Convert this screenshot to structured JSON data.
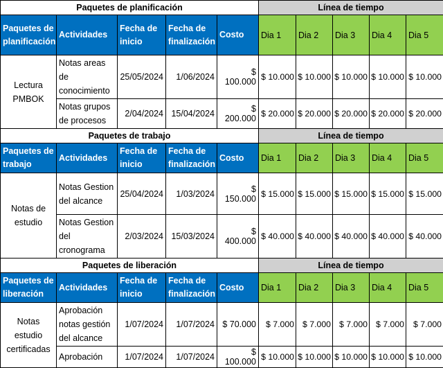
{
  "sections": [
    {
      "title": "Paquetes de planificación",
      "timeline_title": "Línea de tiempo",
      "headers": [
        "Paquetes de planificación",
        "Actividades",
        "Fecha de inicio",
        "Fecha de finalización",
        "Costo"
      ],
      "days": [
        "Dia 1",
        "Dia 2",
        "Dia 3",
        "Dia 4",
        "Dia 5"
      ],
      "package": "Lectura PMBOK",
      "rows": [
        {
          "activity": "Notas areas de conocimiento",
          "start": "25/05/2024",
          "end": "1/06/2024",
          "cost": "$ 100.000",
          "days": [
            "$ 10.000",
            "$ 10.000",
            "$ 10.000",
            "$ 10.000",
            "$ 10.000"
          ]
        },
        {
          "activity": "Notas grupos de procesos",
          "start": "2/04/2024",
          "end": "15/04/2024",
          "cost": "$ 200.000",
          "days": [
            "$ 20.000",
            "$ 20.000",
            "$ 20.000",
            "$ 20.000",
            "$ 20.000"
          ]
        }
      ]
    },
    {
      "title": "Paquetes de trabajo",
      "timeline_title": "Línea de tiempo",
      "headers": [
        "Paquetes de trabajo",
        "Actividades",
        "Fecha de inicio",
        "Fecha de finalización",
        "Costo"
      ],
      "days": [
        "Dia 1",
        "Dia 2",
        "Dia 3",
        "Dia 4",
        "Dia 5"
      ],
      "package": "Notas de estudio",
      "rows": [
        {
          "activity": "Notas Gestion del alcance",
          "start": "25/04/2024",
          "end": "1/03/2024",
          "cost": "$ 150.000",
          "days": [
            "$ 15.000",
            "$ 15.000",
            "$ 15.000",
            "$ 15.000",
            "$ 15.000"
          ]
        },
        {
          "activity": "Notas Gestion del cronograma",
          "start": "2/03/2024",
          "end": "15/03/2024",
          "cost": "$ 400.000",
          "days": [
            "$ 40.000",
            "$ 40.000",
            "$ 40.000",
            "$ 40.000",
            "$ 40.000"
          ]
        }
      ]
    },
    {
      "title": "Paquetes de liberación",
      "timeline_title": "Línea de tiempo",
      "headers": [
        "Paquetes de liberación",
        "Actividades",
        "Fecha de inicio",
        "Fecha de finalización",
        "Costo"
      ],
      "days": [
        "Dia 1",
        "Dia 2",
        "Dia 3",
        "Dia 4",
        "Dia 5"
      ],
      "package": "Notas estudio certificadas",
      "rows": [
        {
          "activity": "Aprobación notas gestión del alcance",
          "start": "1/07/2024",
          "end": "1/07/2024",
          "cost": "$ 70.000",
          "days": [
            "$ 7.000",
            "$ 7.000",
            "$ 7.000",
            "$ 7.000",
            "$ 7.000"
          ]
        },
        {
          "activity": "Aprobación",
          "start": "1/07/2024",
          "end": "1/07/2024",
          "cost": "$ 100.000",
          "days": [
            "$ 10.000",
            "$ 10.000",
            "$ 10.000",
            "$ 10.000",
            "$ 10.000"
          ]
        }
      ]
    }
  ]
}
